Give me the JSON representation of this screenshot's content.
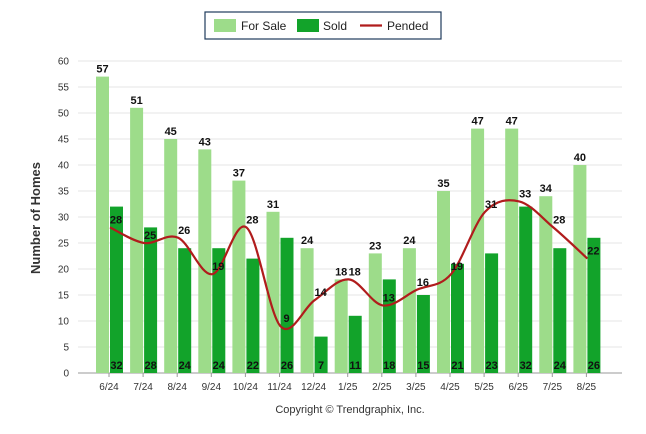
{
  "chart_data": {
    "type": "bar",
    "categories": [
      "6/24",
      "7/24",
      "8/24",
      "9/24",
      "10/24",
      "11/24",
      "12/24",
      "1/25",
      "2/25",
      "3/25",
      "4/25",
      "5/25",
      "6/25",
      "7/25",
      "8/25"
    ],
    "series": [
      {
        "name": "For Sale",
        "type": "bar",
        "color": "#9ddc8a",
        "values": [
          57,
          51,
          45,
          43,
          37,
          31,
          24,
          18,
          23,
          24,
          35,
          47,
          47,
          34,
          40
        ]
      },
      {
        "name": "Sold",
        "type": "bar",
        "color": "#12a32a",
        "values": [
          32,
          28,
          24,
          24,
          22,
          26,
          7,
          11,
          18,
          15,
          21,
          23,
          32,
          24,
          26
        ]
      },
      {
        "name": "Pended",
        "type": "line",
        "color": "#b01c1c",
        "values": [
          28,
          25,
          26,
          19,
          28,
          9,
          14,
          18,
          13,
          16,
          19,
          31,
          33,
          28,
          22
        ]
      }
    ],
    "title": "",
    "xlabel": "",
    "ylabel": "Number of Homes",
    "ylim": [
      0,
      60
    ],
    "yticks": [
      0,
      5,
      10,
      15,
      20,
      25,
      30,
      35,
      40,
      45,
      50,
      55,
      60
    ],
    "grid": true,
    "legend_position": "top-center"
  },
  "footer": {
    "copyright": "Copyright © Trendgraphix, Inc."
  }
}
